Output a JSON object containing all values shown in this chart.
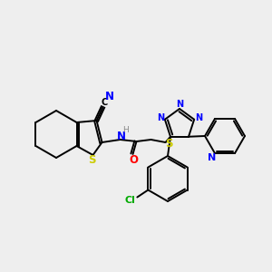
{
  "background_color": "#eeeeee",
  "bond_color": "#000000",
  "atom_colors": {
    "N": "#0000ff",
    "S": "#cccc00",
    "O": "#ff0000",
    "Cl": "#00aa00",
    "C": "#000000",
    "H": "#888888"
  },
  "figsize": [
    3.0,
    3.0
  ],
  "dpi": 100,
  "lw": 1.4,
  "fs": 7.0
}
